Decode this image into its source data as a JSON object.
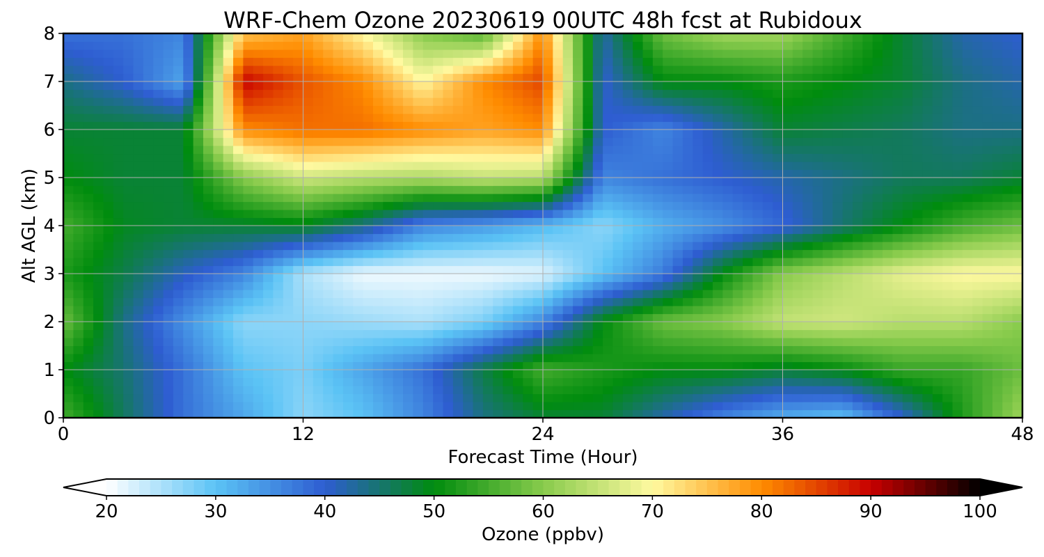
{
  "chart_data": {
    "type": "heatmap",
    "title": "WRF-Chem Ozone  20230619 00UTC 48h fcst at Rubidoux",
    "xlabel": "Forecast Time (Hour)",
    "ylabel": "Alt AGL (km)",
    "xlim": [
      0,
      48
    ],
    "ylim": [
      0,
      8
    ],
    "xticks": [
      0,
      12,
      24,
      36,
      48
    ],
    "yticks": [
      0,
      1,
      2,
      3,
      4,
      5,
      6,
      7,
      8
    ],
    "grid": true,
    "x": [
      0,
      3,
      6,
      9,
      12,
      15,
      18,
      21,
      24,
      27,
      30,
      33,
      36,
      39,
      42,
      45,
      48
    ],
    "y": [
      0,
      1,
      2,
      3,
      4,
      5,
      6,
      7,
      8
    ],
    "values": [
      [
        55,
        46,
        38,
        33,
        27,
        30,
        36,
        44,
        48,
        48,
        42,
        36,
        32,
        30,
        40,
        52,
        62
      ],
      [
        50,
        45,
        38,
        30,
        28,
        33,
        38,
        47,
        55,
        52,
        50,
        50,
        48,
        50,
        54,
        54,
        58
      ],
      [
        58,
        44,
        35,
        27,
        27,
        26,
        25,
        28,
        36,
        50,
        58,
        60,
        65,
        66,
        64,
        64,
        60
      ],
      [
        52,
        47,
        41,
        36,
        25,
        21,
        21,
        21,
        22,
        30,
        37,
        50,
        60,
        64,
        68,
        70,
        70
      ],
      [
        55,
        49,
        48,
        48,
        49,
        44,
        36,
        34,
        31,
        27,
        32,
        35,
        39,
        45,
        50,
        55,
        58
      ],
      [
        50,
        48,
        48,
        60,
        66,
        64,
        63,
        65,
        64,
        36,
        38,
        40,
        42,
        44,
        46,
        46,
        48
      ],
      [
        48,
        48,
        48,
        80,
        82,
        82,
        80,
        78,
        80,
        40,
        36,
        42,
        48,
        47,
        46,
        44,
        44
      ],
      [
        44,
        40,
        33,
        90,
        84,
        80,
        70,
        80,
        85,
        40,
        50,
        50,
        52,
        50,
        48,
        44,
        42
      ],
      [
        38,
        38,
        36,
        75,
        78,
        70,
        60,
        56,
        80,
        42,
        58,
        62,
        62,
        55,
        48,
        42,
        40
      ]
    ],
    "colorbar": {
      "label": "Ozone  (ppbv)",
      "min": 20,
      "max": 100,
      "ticks": [
        20,
        30,
        40,
        50,
        60,
        70,
        80,
        90,
        100
      ],
      "extend": "both",
      "colors": [
        "#ffffff",
        "#5bc3f5",
        "#2e5dd1",
        "#008c0e",
        "#88cb4c",
        "#fff9a0",
        "#ff8c00",
        "#c80000",
        "#000000"
      ]
    }
  }
}
